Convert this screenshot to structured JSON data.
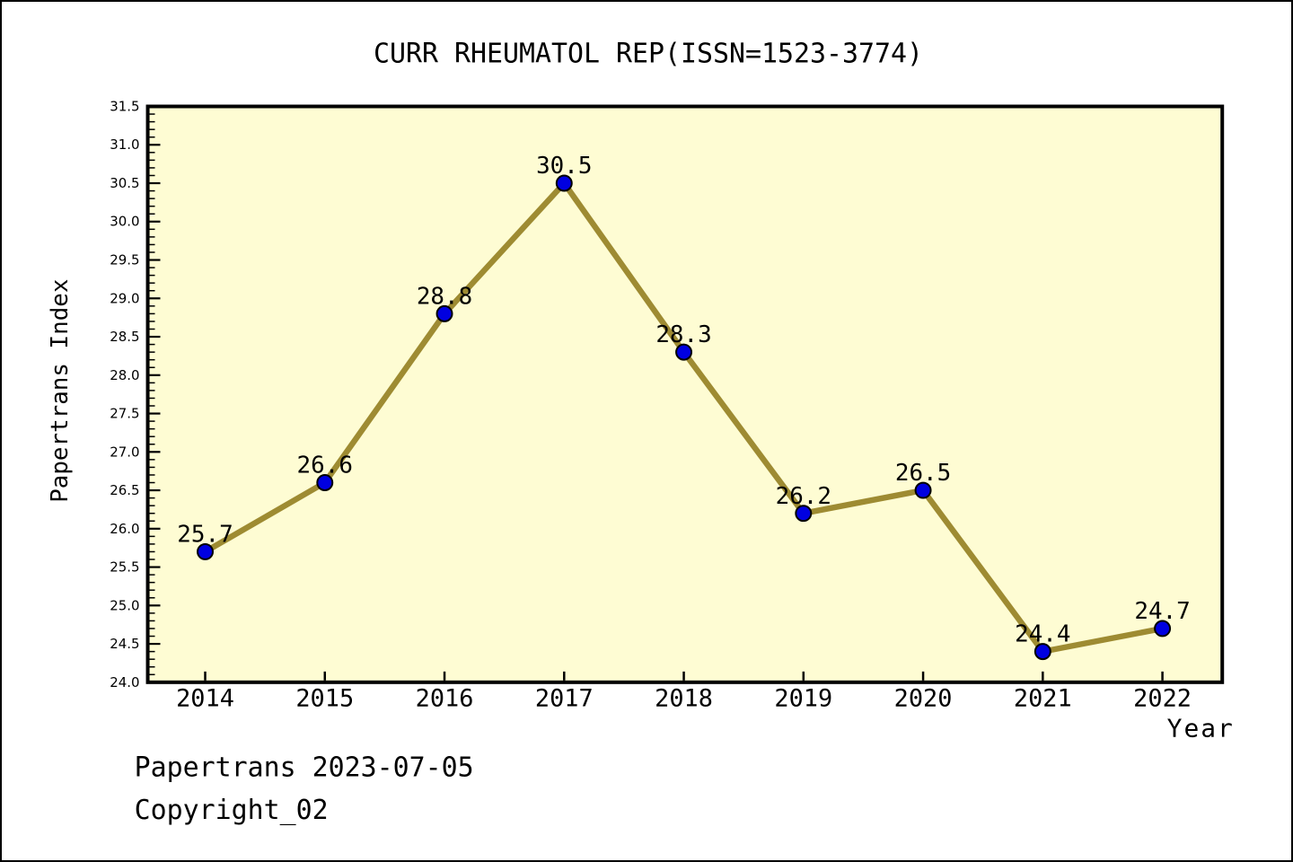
{
  "header": {
    "title": "CURR RHEUMATOL REP(ISSN=1523-3774)"
  },
  "footer": {
    "line1": "Papertrans 2023-07-05",
    "line2": "Copyright_02"
  },
  "chart_data": {
    "type": "line",
    "title": "CURR RHEUMATOL REP(ISSN=1523-3774)",
    "xlabel": "Year",
    "ylabel": "Papertrans Index",
    "x": [
      2014,
      2015,
      2016,
      2017,
      2018,
      2019,
      2020,
      2021,
      2022
    ],
    "values": [
      25.7,
      26.6,
      28.8,
      30.5,
      28.3,
      26.2,
      26.5,
      24.4,
      24.7
    ],
    "point_labels": [
      "25.7",
      "26.6",
      "28.8",
      "30.5",
      "28.3",
      "26.2",
      "26.5",
      "24.4",
      "24.7"
    ],
    "x_tick_labels": [
      "2014",
      "2015",
      "2016",
      "2017",
      "2018",
      "2019",
      "2020",
      "2021",
      "2022"
    ],
    "y_tick_labels": [
      "24.0",
      "24.5",
      "25.0",
      "25.5",
      "26.0",
      "26.5",
      "27.0",
      "27.5",
      "28.0",
      "28.5",
      "29.0",
      "29.5",
      "30.0",
      "30.5",
      "31.0",
      "31.5"
    ],
    "ylim": [
      24.0,
      31.5
    ],
    "xlim": [
      2013.52,
      2022.5
    ],
    "y_major_step": 0.5,
    "y_minor_step": 0.1,
    "grid": false,
    "legend_position": "none",
    "point_label_decimals": 1,
    "colors": {
      "line": "#9E8B32",
      "marker": "#0000E0",
      "marker_edge": "#000000",
      "plot_background": "#FEFCD3",
      "figure_background": "#FFFFFF",
      "frame": "#000000",
      "text": "#000000"
    }
  }
}
